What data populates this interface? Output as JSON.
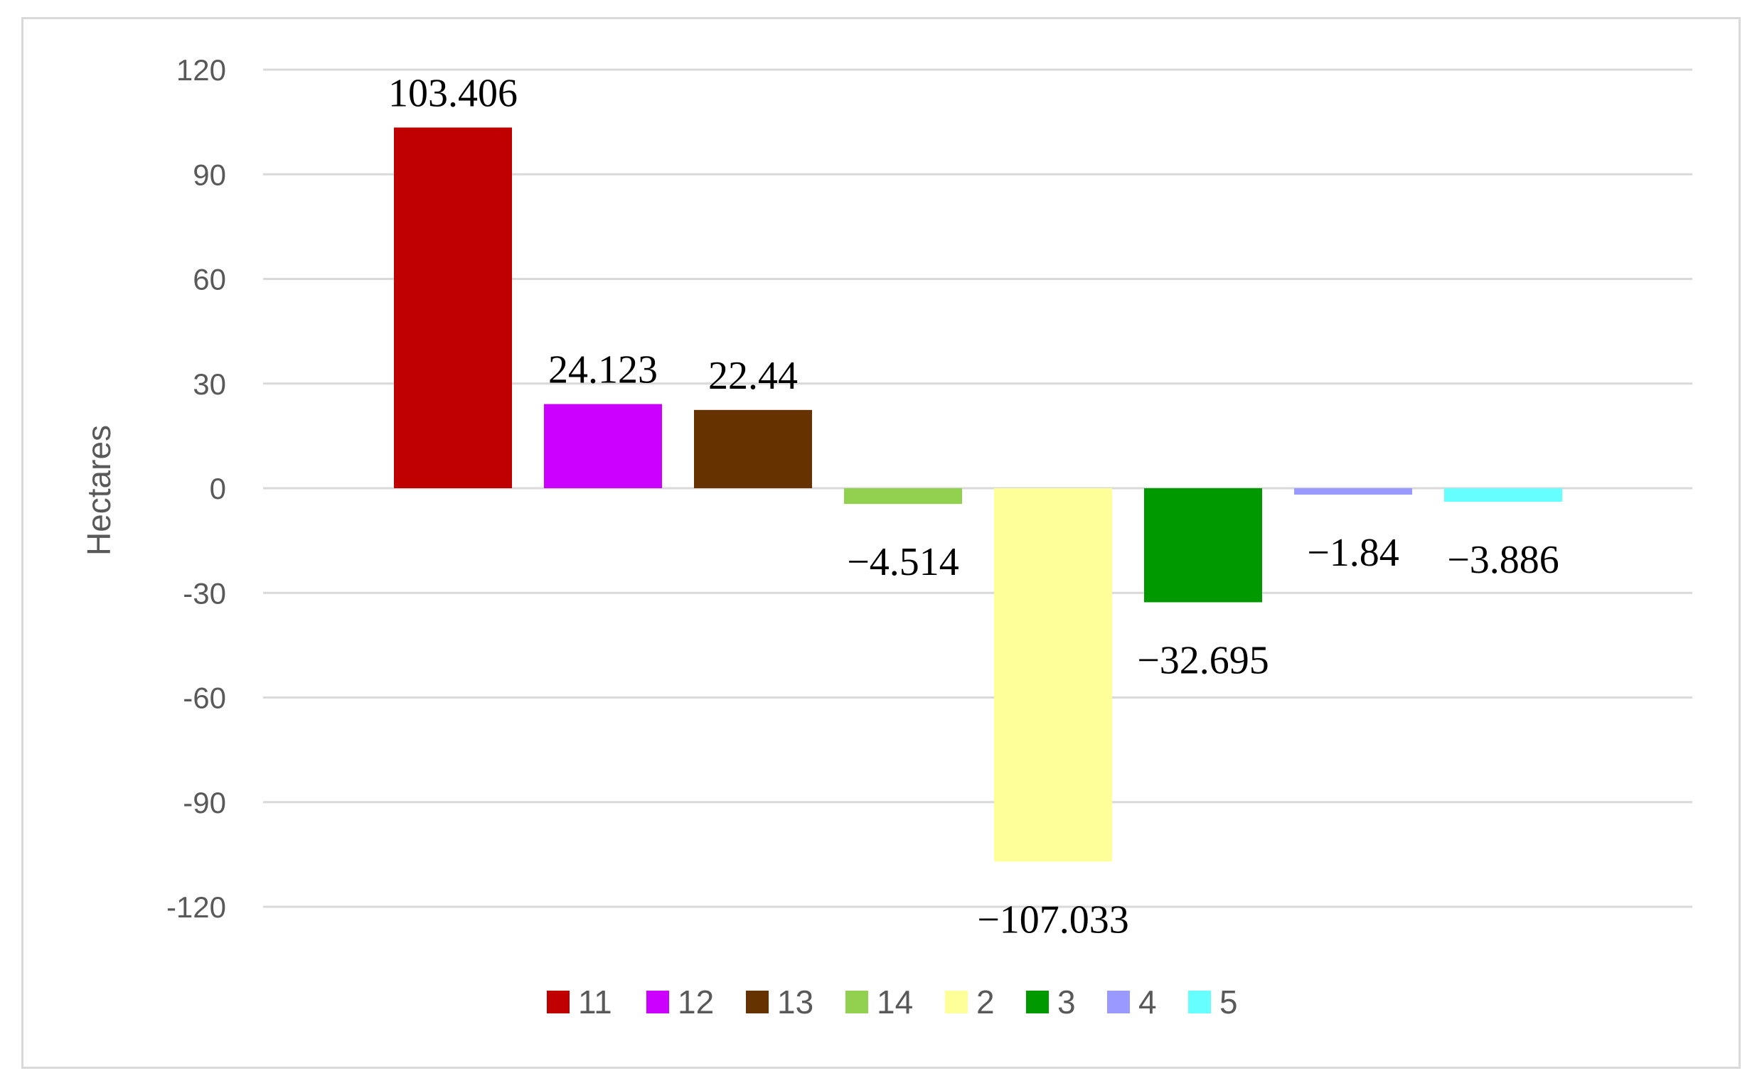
{
  "chart_data": {
    "type": "bar",
    "title": "",
    "xlabel": "",
    "ylabel": "Hectares",
    "ylim": [
      -120,
      120
    ],
    "yticks": [
      120,
      90,
      60,
      30,
      0,
      -30,
      -60,
      -90,
      -120
    ],
    "ytick_labels": [
      "120",
      "90",
      "60",
      "30",
      "0",
      "-30",
      "-60",
      "-90",
      "-120"
    ],
    "grid": true,
    "legend_position": "bottom",
    "categories": [
      "11",
      "12",
      "13",
      "14",
      "2",
      "3",
      "4",
      "5"
    ],
    "series": [
      {
        "name": "11",
        "value": 103.406,
        "label": "103.406",
        "color": "#c00000"
      },
      {
        "name": "12",
        "value": 24.123,
        "label": "24.123",
        "color": "#cc00ff"
      },
      {
        "name": "13",
        "value": 22.44,
        "label": "22.44",
        "color": "#663300"
      },
      {
        "name": "14",
        "value": -4.514,
        "label": "−4.514",
        "color": "#92d050"
      },
      {
        "name": "2",
        "value": -107.033,
        "label": "−107.033",
        "color": "#ffff99"
      },
      {
        "name": "3",
        "value": -32.695,
        "label": "−32.695",
        "color": "#009900"
      },
      {
        "name": "4",
        "value": -1.84,
        "label": "−1.84",
        "color": "#9999ff"
      },
      {
        "name": "5",
        "value": -3.886,
        "label": "−3.886",
        "color": "#66ffff"
      }
    ],
    "colors": {
      "grid": "#d9d9d9",
      "tick_text": "#595959",
      "frame": "#d9d9d9"
    }
  }
}
